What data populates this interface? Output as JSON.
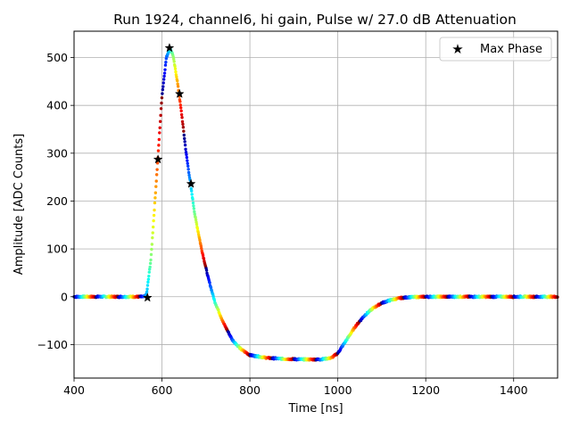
{
  "chart_data": {
    "type": "scatter",
    "title": "Run 1924, channel6, hi gain, Pulse w/ 27.0 dB Attenuation",
    "xlabel": "Time [ns]",
    "ylabel": "Amplitude [ADC Counts]",
    "xlim": [
      400,
      1500
    ],
    "ylim": [
      -170,
      555
    ],
    "xticks": [
      400,
      600,
      800,
      1000,
      1200,
      1400
    ],
    "yticks": [
      -100,
      0,
      100,
      200,
      300,
      400,
      500
    ],
    "grid": true,
    "legend": {
      "position": "top-right",
      "entries": [
        "Max Phase"
      ]
    },
    "pulse_shape": {
      "x": [
        400,
        560,
        565,
        575,
        590,
        600,
        610,
        618,
        625,
        635,
        645,
        655,
        665,
        675,
        690,
        705,
        720,
        740,
        760,
        780,
        800,
        840,
        880,
        920,
        960,
        985,
        1000,
        1020,
        1040,
        1060,
        1080,
        1100,
        1120,
        1140,
        1160,
        1200,
        1300,
        1500
      ],
      "y": [
        0,
        0,
        5,
        80,
        280,
        420,
        500,
        520,
        505,
        450,
        380,
        300,
        235,
        170,
        100,
        40,
        -10,
        -55,
        -90,
        -110,
        -122,
        -128,
        -130,
        -131,
        -131,
        -128,
        -118,
        -90,
        -62,
        -40,
        -24,
        -13,
        -7,
        -3,
        -1,
        0,
        0,
        0
      ]
    },
    "max_phase_points": {
      "name": "Max Phase",
      "x": [
        567,
        591,
        617,
        640,
        666
      ],
      "y": [
        -2,
        287,
        520,
        424,
        236
      ]
    }
  }
}
